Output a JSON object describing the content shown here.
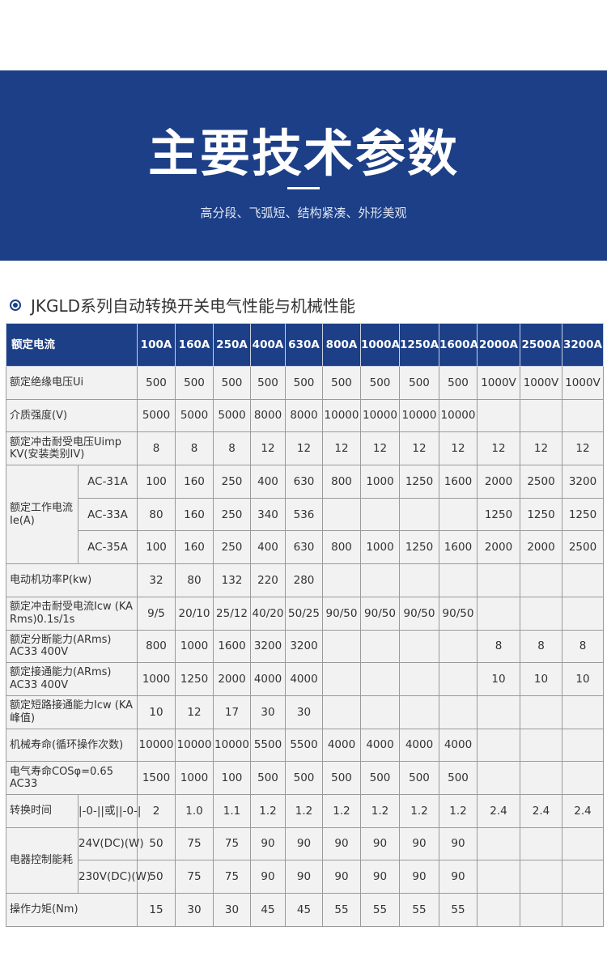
{
  "banner": {
    "title": "主要技术参数",
    "subtitle": "高分段、飞弧短、结构紧凑、外形美观"
  },
  "section": {
    "icon": "target-bullet-icon",
    "title": "JKGLD系列自动转换开关电气性能与机械性能"
  },
  "colors": {
    "primary": "#1c3f87",
    "cell": "#f2f2f2"
  },
  "table": {
    "header_label": "额定电流",
    "columns": [
      "100A",
      "160A",
      "250A",
      "400A",
      "630A",
      "800A",
      "1000A",
      "1250A",
      "1600A",
      "2000A",
      "2500A",
      "3200A"
    ],
    "rows": [
      {
        "label": "额定绝缘电压Ui",
        "values": [
          "500",
          "500",
          "500",
          "500",
          "500",
          "500",
          "500",
          "500",
          "500",
          "1000V",
          "1000V",
          "1000V"
        ]
      },
      {
        "label": "介质强度(V)",
        "values": [
          "5000",
          "5000",
          "5000",
          "8000",
          "8000",
          "10000",
          "10000",
          "10000",
          "10000",
          "",
          "",
          ""
        ]
      },
      {
        "label": "额定冲击耐受电压Uimp KV(安装类别IV)",
        "values": [
          "8",
          "8",
          "8",
          "12",
          "12",
          "12",
          "12",
          "12",
          "12",
          "12",
          "12",
          "12"
        ]
      },
      {
        "group": "额定工作电流Ie(A)",
        "label": "AC-31A",
        "values": [
          "100",
          "160",
          "250",
          "400",
          "630",
          "800",
          "1000",
          "1250",
          "1600",
          "2000",
          "2500",
          "3200"
        ]
      },
      {
        "group": "额定工作电流Ie(A)",
        "label": "AC-33A",
        "values": [
          "80",
          "160",
          "250",
          "340",
          "536",
          "",
          "",
          "",
          "",
          "1250",
          "1250",
          "1250"
        ]
      },
      {
        "group": "额定工作电流Ie(A)",
        "label": "AC-35A",
        "values": [
          "100",
          "160",
          "250",
          "400",
          "630",
          "800",
          "1000",
          "1250",
          "1600",
          "2000",
          "2000",
          "2500"
        ]
      },
      {
        "label": "电动机功率P(kw)",
        "values": [
          "32",
          "80",
          "132",
          "220",
          "280",
          "",
          "",
          "",
          "",
          "",
          "",
          ""
        ]
      },
      {
        "label": "额定冲击耐受电流Icw (KA Rms)0.1s/1s",
        "values": [
          "9/5",
          "20/10",
          "25/12",
          "40/20",
          "50/25",
          "90/50",
          "90/50",
          "90/50",
          "90/50",
          "",
          "",
          ""
        ]
      },
      {
        "label": "额定分断能力(ARms) AC33 400V",
        "values": [
          "800",
          "1000",
          "1600",
          "3200",
          "3200",
          "",
          "",
          "",
          "",
          "8",
          "8",
          "8"
        ]
      },
      {
        "label": "额定接通能力(ARms) AC33 400V",
        "values": [
          "1000",
          "1250",
          "2000",
          "4000",
          "4000",
          "",
          "",
          "",
          "",
          "10",
          "10",
          "10"
        ]
      },
      {
        "label": "额定短路接通能力Icw (KA峰值)",
        "values": [
          "10",
          "12",
          "17",
          "30",
          "30",
          "",
          "",
          "",
          "",
          "",
          "",
          ""
        ]
      },
      {
        "label": "机械寿命(循环操作次数)",
        "values": [
          "10000",
          "10000",
          "10000",
          "5500",
          "5500",
          "4000",
          "4000",
          "4000",
          "4000",
          "",
          "",
          ""
        ]
      },
      {
        "label": "电气寿命COSφ=0.65 AC33",
        "values": [
          "1500",
          "1000",
          "100",
          "500",
          "500",
          "500",
          "500",
          "500",
          "500",
          "",
          "",
          ""
        ]
      },
      {
        "group": "转换时间",
        "label": "|-0-||或||-0-|",
        "values": [
          "2",
          "1.0",
          "1.1",
          "1.2",
          "1.2",
          "1.2",
          "1.2",
          "1.2",
          "1.2",
          "2.4",
          "2.4",
          "2.4"
        ]
      },
      {
        "group": "电器控制能耗",
        "label": "24V(DC)(W)",
        "values": [
          "50",
          "75",
          "75",
          "90",
          "90",
          "90",
          "90",
          "90",
          "90",
          "",
          "",
          ""
        ]
      },
      {
        "group": "电器控制能耗",
        "label": "230V(DC)(W)",
        "values": [
          "50",
          "75",
          "75",
          "90",
          "90",
          "90",
          "90",
          "90",
          "90",
          "",
          "",
          ""
        ]
      },
      {
        "label": "操作力矩(Nm)",
        "values": [
          "15",
          "30",
          "30",
          "45",
          "45",
          "55",
          "55",
          "55",
          "55",
          "",
          "",
          ""
        ]
      }
    ]
  }
}
